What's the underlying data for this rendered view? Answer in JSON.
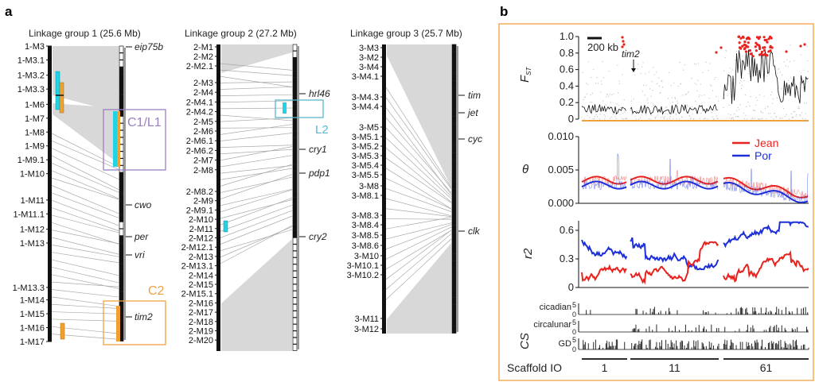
{
  "panel_a": {
    "label": "a",
    "lg1": {
      "title": "Linkage group 1 (25.6 Mb)",
      "markers": [
        {
          "name": "1-M3",
          "pos": 0.0
        },
        {
          "name": "1-M3.1",
          "pos": 0.05
        },
        {
          "name": "1-M3.2",
          "pos": 0.105
        },
        {
          "name": "1-M3.3",
          "pos": 0.155
        },
        {
          "name": "1-M6",
          "pos": 0.21
        },
        {
          "name": "1-M7",
          "pos": 0.26
        },
        {
          "name": "1-M8",
          "pos": 0.31
        },
        {
          "name": "1-M9",
          "pos": 0.36
        },
        {
          "name": "1-M9.1",
          "pos": 0.41
        },
        {
          "name": "1-M10",
          "pos": 0.46
        },
        {
          "name": "1-M11",
          "pos": 0.555
        },
        {
          "name": "1-M11.1",
          "pos": 0.605
        },
        {
          "name": "1-M12",
          "pos": 0.66
        },
        {
          "name": "1-M13",
          "pos": 0.71
        },
        {
          "name": "1-M13.3",
          "pos": 0.87
        },
        {
          "name": "1-M14",
          "pos": 0.915
        },
        {
          "name": "1-M15",
          "pos": 0.965
        },
        {
          "name": "1-M16",
          "pos": 1.015
        },
        {
          "name": "1-M17",
          "pos": 1.065
        }
      ],
      "genes": [
        {
          "name": "eip75b",
          "pos": 0.0
        },
        {
          "name": "cwo",
          "pos": 0.6
        },
        {
          "name": "per",
          "pos": 0.705
        },
        {
          "name": "vri",
          "pos": 0.775
        },
        {
          "name": "tim2",
          "pos": 1.0
        }
      ],
      "regions": [
        {
          "name": "C1/L1",
          "color": "#9b7fc0"
        },
        {
          "name": "C2",
          "color": "#f0a040"
        }
      ]
    },
    "lg2": {
      "title": "Linkage group 2 (27.2 Mb)",
      "markers": [
        {
          "name": "2-M1"
        },
        {
          "name": "2-M2"
        },
        {
          "name": "2-M2.1"
        },
        {
          "name": "2-M3"
        },
        {
          "name": "2-M4"
        },
        {
          "name": "2-M4.1"
        },
        {
          "name": "2-M4.2"
        },
        {
          "name": "2-M5"
        },
        {
          "name": "2-M6"
        },
        {
          "name": "2-M6.1"
        },
        {
          "name": "2-M6.2"
        },
        {
          "name": "2-M7"
        },
        {
          "name": "2-M8"
        },
        {
          "name": "2-M8.2"
        },
        {
          "name": "2-M9"
        },
        {
          "name": "2-M9.1"
        },
        {
          "name": "2-M10"
        },
        {
          "name": "2-M11"
        },
        {
          "name": "2-M12"
        },
        {
          "name": "2-M12.1"
        },
        {
          "name": "2-M13"
        },
        {
          "name": "2-M13.1"
        },
        {
          "name": "2-M14"
        },
        {
          "name": "2-M15"
        },
        {
          "name": "2-M15.1"
        },
        {
          "name": "2-M16"
        },
        {
          "name": "2-M17"
        },
        {
          "name": "2-M18"
        },
        {
          "name": "2-M19"
        },
        {
          "name": "2-M20"
        }
      ],
      "genes": [
        {
          "name": "hrl46"
        },
        {
          "name": "cry1"
        },
        {
          "name": "pdp1"
        },
        {
          "name": "cry2"
        }
      ],
      "regions": [
        {
          "name": "L2",
          "color": "#5ab8cc"
        }
      ]
    },
    "lg3": {
      "title": "Linkage group 3 (25.7 Mb)",
      "markers": [
        {
          "name": "3-M3"
        },
        {
          "name": "3-M2"
        },
        {
          "name": "3-M4"
        },
        {
          "name": "3-M4.1"
        },
        {
          "name": "3-M4.3"
        },
        {
          "name": "3-M4.4"
        },
        {
          "name": "3-M5"
        },
        {
          "name": "3-M5.1"
        },
        {
          "name": "3-M5.2"
        },
        {
          "name": "3-M5.3"
        },
        {
          "name": "3-M5.4"
        },
        {
          "name": "3-M5.5"
        },
        {
          "name": "3-M8"
        },
        {
          "name": "3-M8.1"
        },
        {
          "name": "3-M8.3"
        },
        {
          "name": "3-M8.4"
        },
        {
          "name": "3-M8.5"
        },
        {
          "name": "3-M8.6"
        },
        {
          "name": "3-M10"
        },
        {
          "name": "3-M10.1"
        },
        {
          "name": "3-M10.2"
        },
        {
          "name": "3-M11"
        },
        {
          "name": "3-M12"
        }
      ],
      "genes": [
        {
          "name": "tim"
        },
        {
          "name": "jet"
        },
        {
          "name": "cyc"
        },
        {
          "name": "clk"
        }
      ]
    }
  },
  "panel_b": {
    "label": "b",
    "scale_bar": "200 kb",
    "tim2_label": "tim2",
    "fst": {
      "ylabel": "F",
      "ysub": "ST",
      "ticks": [
        "1.0",
        "0.8",
        "0.6",
        "0.4",
        "0.2",
        "0"
      ]
    },
    "theta": {
      "ylabel": "θ",
      "ticks": [
        "0.010",
        "0.005",
        "0.000"
      ],
      "legend": [
        {
          "name": "Jean",
          "color": "#e8231f"
        },
        {
          "name": "Por",
          "color": "#1d2fd8"
        }
      ]
    },
    "r2": {
      "ylabel": "r2",
      "ticks": [
        "0.6",
        "0.3",
        "0"
      ]
    },
    "cs": {
      "ylabel": "CS",
      "tracks": [
        "cicadian",
        "circalunar",
        "GD"
      ],
      "ticks": [
        "5",
        "0"
      ]
    },
    "scaffold": {
      "label": "Scaffold IO",
      "names": [
        "1",
        "11",
        "61"
      ]
    },
    "colors": {
      "jean": "#e8231f",
      "por": "#1d2fd8",
      "fst_pts": "#bdbdbd",
      "fst_out": "#e8231f",
      "frame": "#f0a040"
    }
  }
}
